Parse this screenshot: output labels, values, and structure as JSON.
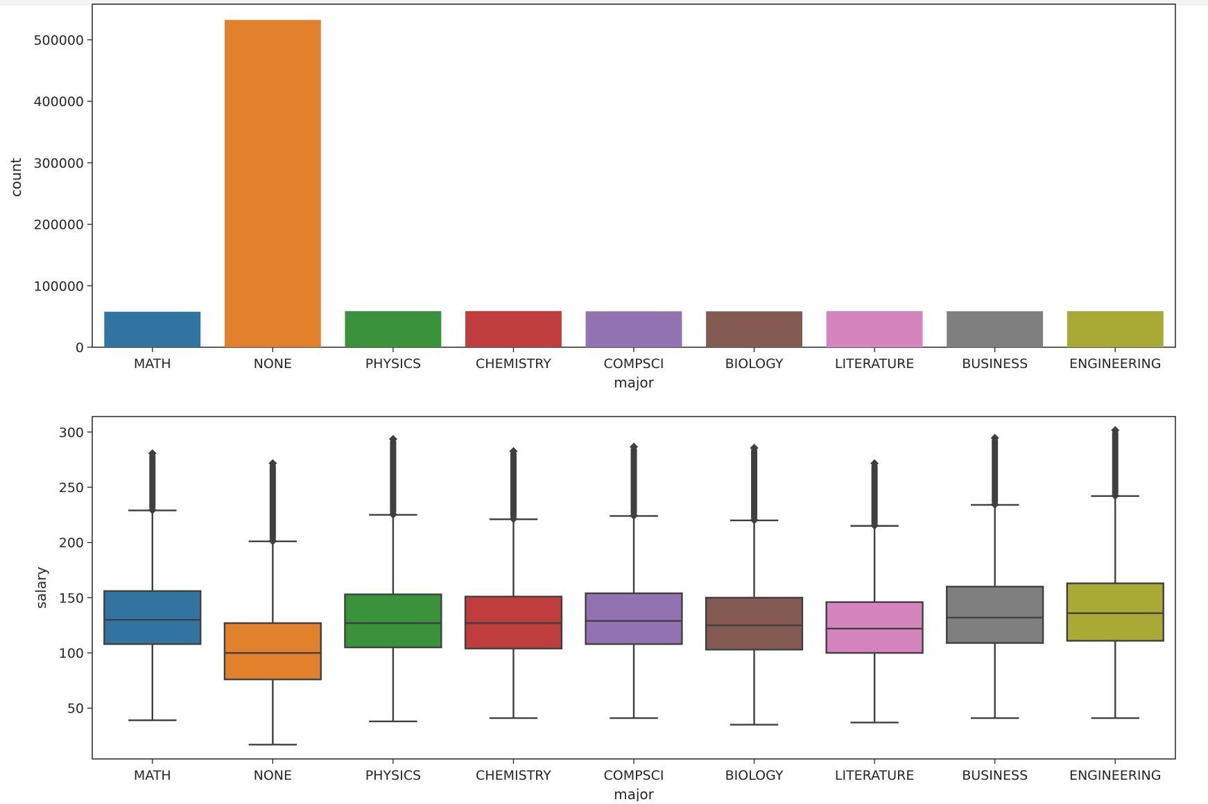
{
  "chart_data": [
    {
      "type": "bar",
      "title": "",
      "xlabel": "major",
      "ylabel": "count",
      "categories": [
        "MATH",
        "NONE",
        "PHYSICS",
        "CHEMISTRY",
        "COMPSCI",
        "BIOLOGY",
        "LITERATURE",
        "BUSINESS",
        "ENGINEERING"
      ],
      "values": [
        57801,
        532355,
        58741,
        58875,
        58382,
        58379,
        58684,
        58518,
        58596
      ],
      "colors": [
        "#3274a1",
        "#e1812c",
        "#3a923a",
        "#c03d3e",
        "#9372b2",
        "#845b53",
        "#d684bd",
        "#7f7f7f",
        "#a9aa35"
      ],
      "ylim": [
        0,
        558000
      ],
      "yticks": [
        0,
        100000,
        200000,
        300000,
        400000,
        500000
      ],
      "ytick_labels": [
        "0",
        "100000",
        "200000",
        "300000",
        "400000",
        "500000"
      ],
      "grid": false
    },
    {
      "type": "box",
      "title": "",
      "xlabel": "major",
      "ylabel": "salary",
      "categories": [
        "MATH",
        "NONE",
        "PHYSICS",
        "CHEMISTRY",
        "COMPSCI",
        "BIOLOGY",
        "LITERATURE",
        "BUSINESS",
        "ENGINEERING"
      ],
      "colors": [
        "#3274a1",
        "#e1812c",
        "#3a923a",
        "#c03d3e",
        "#9372b2",
        "#845b53",
        "#d684bd",
        "#7f7f7f",
        "#a9aa35"
      ],
      "series": [
        {
          "name": "MATH",
          "whisker_low": 39,
          "q1": 108,
          "median": 130,
          "q3": 156,
          "whisker_high": 229,
          "outliers_from": 230,
          "outliers_to": 280
        },
        {
          "name": "NONE",
          "whisker_low": 17,
          "q1": 76,
          "median": 100,
          "q3": 127,
          "whisker_high": 201,
          "outliers_from": 202,
          "outliers_to": 271
        },
        {
          "name": "PHYSICS",
          "whisker_low": 38,
          "q1": 105,
          "median": 127,
          "q3": 153,
          "whisker_high": 225,
          "outliers_from": 226,
          "outliers_to": 293
        },
        {
          "name": "CHEMISTRY",
          "whisker_low": 41,
          "q1": 104,
          "median": 127,
          "q3": 151,
          "whisker_high": 221,
          "outliers_from": 222,
          "outliers_to": 282
        },
        {
          "name": "COMPSCI",
          "whisker_low": 41,
          "q1": 108,
          "median": 129,
          "q3": 154,
          "whisker_high": 224,
          "outliers_from": 225,
          "outliers_to": 286
        },
        {
          "name": "BIOLOGY",
          "whisker_low": 35,
          "q1": 103,
          "median": 125,
          "q3": 150,
          "whisker_high": 220,
          "outliers_from": 221,
          "outliers_to": 285
        },
        {
          "name": "LITERATURE",
          "whisker_low": 37,
          "q1": 100,
          "median": 122,
          "q3": 146,
          "whisker_high": 215,
          "outliers_from": 216,
          "outliers_to": 271
        },
        {
          "name": "BUSINESS",
          "whisker_low": 41,
          "q1": 109,
          "median": 132,
          "q3": 160,
          "whisker_high": 234,
          "outliers_from": 235,
          "outliers_to": 294
        },
        {
          "name": "ENGINEERING",
          "whisker_low": 41,
          "q1": 111,
          "median": 136,
          "q3": 163,
          "whisker_high": 242,
          "outliers_from": 243,
          "outliers_to": 301
        }
      ],
      "ylim": [
        4,
        314
      ],
      "yticks": [
        50,
        100,
        150,
        200,
        250,
        300
      ],
      "ytick_labels": [
        "50",
        "100",
        "150",
        "200",
        "250",
        "300"
      ],
      "grid": false
    }
  ]
}
